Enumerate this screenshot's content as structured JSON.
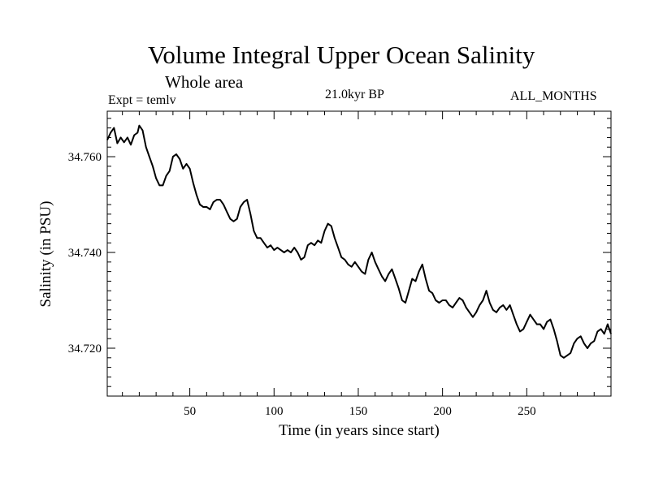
{
  "header": {
    "title": "Volume Integral Upper Ocean Salinity",
    "subtitle": "Whole area",
    "experiment": "Expt = temlv",
    "period": "21.0kyr BP",
    "months": "ALL_MONTHS"
  },
  "chart_data": {
    "type": "line",
    "title": "Volume Integral Upper Ocean Salinity",
    "xlabel": "Time (in years since start)",
    "ylabel": "Salinity (in PSU)",
    "xlim": [
      1,
      300
    ],
    "ylim": [
      34.71,
      34.7695
    ],
    "xticks": [
      50,
      100,
      150,
      200,
      250
    ],
    "xtick_labels": [
      "50",
      "100",
      "150",
      "200",
      "250"
    ],
    "yticks": [
      34.72,
      34.74,
      34.76
    ],
    "ytick_labels": [
      "34.720",
      "34.740",
      "34.760"
    ],
    "grid": false,
    "series": [
      {
        "name": "Salinity",
        "x": [
          1,
          3,
          5,
          7,
          9,
          11,
          13,
          15,
          17,
          19,
          20,
          22,
          24,
          26,
          28,
          30,
          32,
          34,
          36,
          38,
          40,
          42,
          44,
          46,
          48,
          50,
          52,
          54,
          56,
          58,
          60,
          62,
          64,
          66,
          68,
          70,
          72,
          74,
          76,
          78,
          80,
          82,
          84,
          86,
          88,
          90,
          92,
          94,
          96,
          98,
          100,
          102,
          104,
          106,
          108,
          110,
          112,
          114,
          116,
          118,
          120,
          122,
          124,
          126,
          128,
          130,
          132,
          134,
          136,
          138,
          140,
          142,
          144,
          146,
          148,
          150,
          152,
          154,
          156,
          158,
          160,
          162,
          164,
          166,
          168,
          170,
          172,
          174,
          176,
          178,
          180,
          182,
          184,
          186,
          188,
          190,
          192,
          194,
          196,
          198,
          200,
          202,
          204,
          206,
          208,
          210,
          212,
          214,
          216,
          218,
          220,
          222,
          224,
          226,
          228,
          230,
          232,
          234,
          236,
          238,
          240,
          242,
          244,
          246,
          248,
          250,
          252,
          254,
          256,
          258,
          260,
          262,
          264,
          266,
          268,
          270,
          272,
          274,
          276,
          278,
          280,
          282,
          284,
          286,
          288,
          290,
          292,
          294,
          296,
          298,
          300
        ],
        "values": [
          34.7635,
          34.765,
          34.766,
          34.7628,
          34.764,
          34.763,
          34.764,
          34.7625,
          34.7645,
          34.765,
          34.7665,
          34.7655,
          34.762,
          34.76,
          34.758,
          34.7555,
          34.754,
          34.754,
          34.756,
          34.757,
          34.76,
          34.7605,
          34.7595,
          34.7575,
          34.7585,
          34.7575,
          34.7545,
          34.752,
          34.75,
          34.7495,
          34.7495,
          34.749,
          34.7505,
          34.751,
          34.751,
          34.75,
          34.7485,
          34.747,
          34.7465,
          34.747,
          34.7495,
          34.7505,
          34.751,
          34.748,
          34.7445,
          34.743,
          34.743,
          34.742,
          34.741,
          34.7415,
          34.7405,
          34.741,
          34.7405,
          34.74,
          34.7405,
          34.74,
          34.741,
          34.74,
          34.7385,
          34.739,
          34.7415,
          34.742,
          34.7415,
          34.7425,
          34.742,
          34.7445,
          34.746,
          34.7455,
          34.743,
          34.741,
          34.739,
          34.7385,
          34.7375,
          34.737,
          34.738,
          34.737,
          34.736,
          34.7355,
          34.7385,
          34.74,
          34.738,
          34.7365,
          34.735,
          34.734,
          34.7355,
          34.7365,
          34.7345,
          34.7325,
          34.73,
          34.7295,
          34.732,
          34.7345,
          34.734,
          34.736,
          34.7375,
          34.7345,
          34.732,
          34.7315,
          34.73,
          34.7295,
          34.73,
          34.73,
          34.729,
          34.7285,
          34.7295,
          34.7305,
          34.73,
          34.7285,
          34.7275,
          34.7265,
          34.7275,
          34.729,
          34.73,
          34.732,
          34.7295,
          34.728,
          34.7275,
          34.7285,
          34.729,
          34.728,
          34.729,
          34.727,
          34.725,
          34.7235,
          34.724,
          34.7255,
          34.727,
          34.726,
          34.725,
          34.725,
          34.724,
          34.7255,
          34.726,
          34.724,
          34.7215,
          34.7185,
          34.718,
          34.7185,
          34.719,
          34.721,
          34.722,
          34.7225,
          34.721,
          34.72,
          34.721,
          34.7215,
          34.7235,
          34.724,
          34.723,
          34.725,
          34.723
        ]
      }
    ]
  }
}
